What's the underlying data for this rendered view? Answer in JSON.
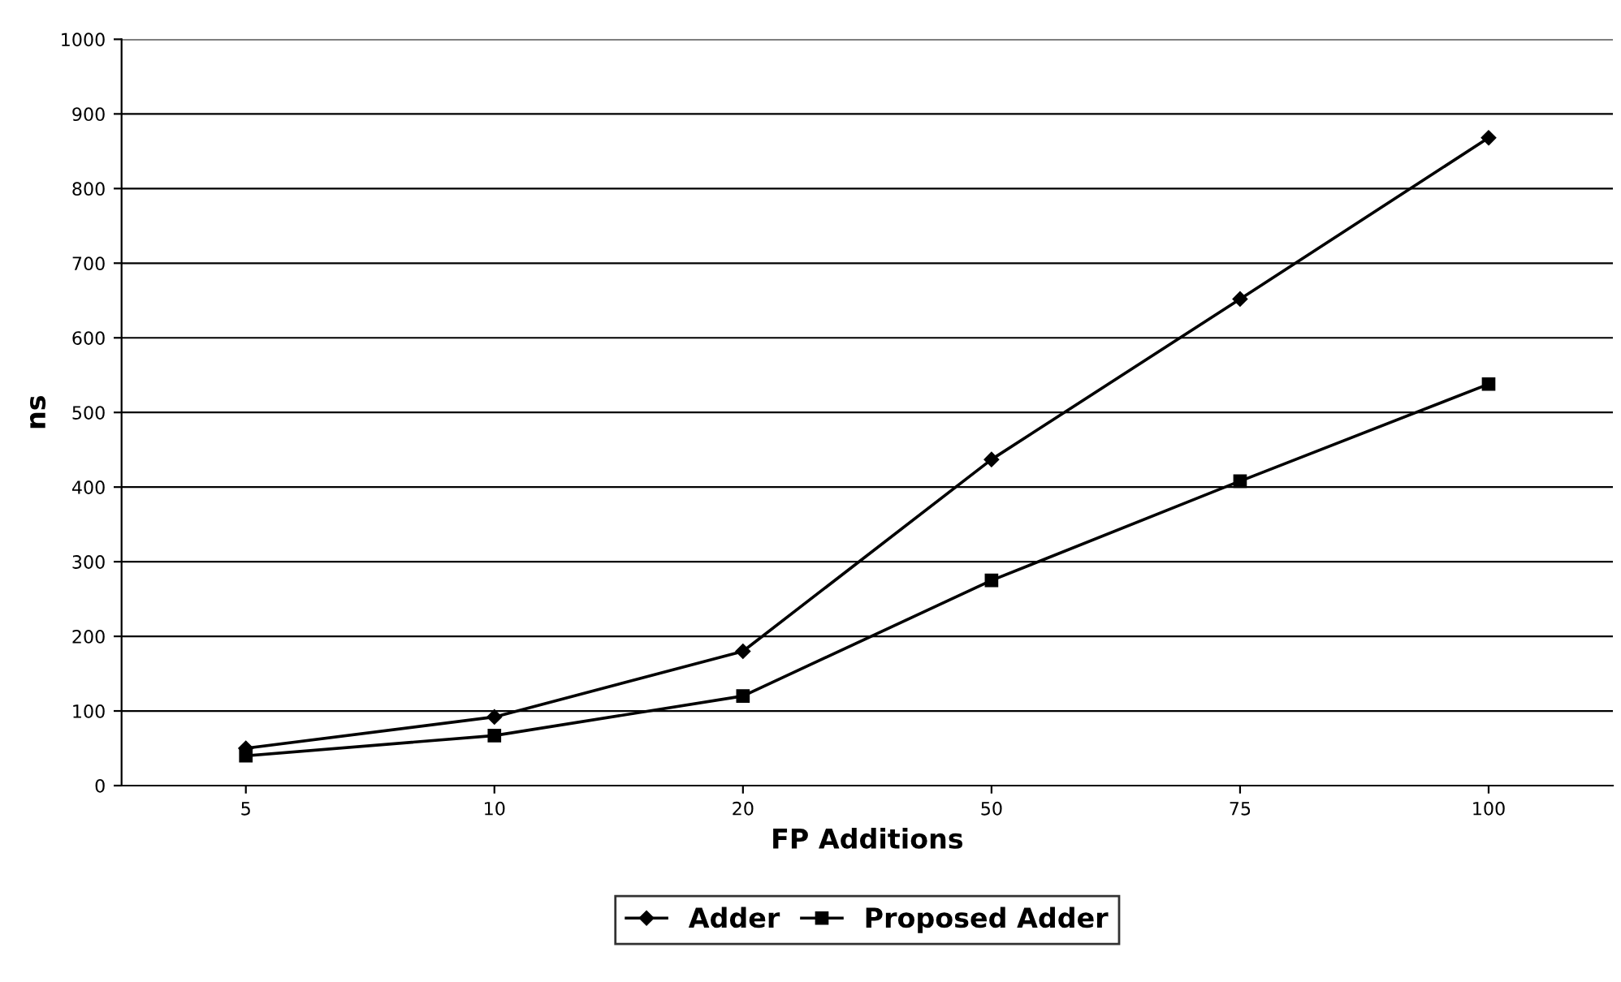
{
  "chart_data": {
    "type": "line",
    "xlabel": "FP Additions",
    "ylabel": "ns",
    "categories": [
      "5",
      "10",
      "20",
      "50",
      "75",
      "100"
    ],
    "series": [
      {
        "name": "Adder",
        "color": "#000000",
        "marker": "diamond",
        "values": [
          50,
          92,
          180,
          437,
          652,
          868
        ]
      },
      {
        "name": "Proposed Adder",
        "color": "#000000",
        "marker": "square",
        "values": [
          40,
          67,
          120,
          275,
          408,
          538
        ]
      }
    ],
    "ylim": [
      0,
      1000
    ],
    "yticks": [
      0,
      100,
      200,
      300,
      400,
      500,
      600,
      700,
      800,
      900,
      1000
    ],
    "grid": "y",
    "legend": "bottom",
    "line_style": "solid"
  }
}
